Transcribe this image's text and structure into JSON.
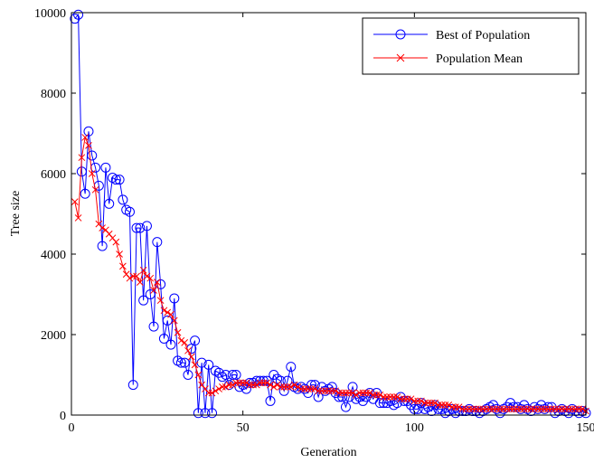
{
  "chart_data": {
    "type": "line",
    "title": "",
    "xlabel": "Generation",
    "ylabel": "Tree size",
    "xlim": [
      0,
      150
    ],
    "ylim": [
      0,
      10000
    ],
    "xticks": [
      0,
      50,
      100,
      150
    ],
    "yticks": [
      0,
      2000,
      4000,
      6000,
      8000,
      10000
    ],
    "grid": false,
    "legend_position": "top-right",
    "series": [
      {
        "name": "Best of Population",
        "color": "#0000ff",
        "marker": "circle",
        "x": [
          1,
          2,
          3,
          4,
          5,
          6,
          7,
          8,
          9,
          10,
          11,
          12,
          13,
          14,
          15,
          16,
          17,
          18,
          19,
          20,
          21,
          22,
          23,
          24,
          25,
          26,
          27,
          28,
          29,
          30,
          31,
          32,
          33,
          34,
          35,
          36,
          37,
          38,
          39,
          40,
          41,
          42,
          43,
          44,
          45,
          46,
          47,
          48,
          49,
          50,
          51,
          52,
          53,
          54,
          55,
          56,
          57,
          58,
          59,
          60,
          61,
          62,
          63,
          64,
          65,
          66,
          67,
          68,
          69,
          70,
          71,
          72,
          73,
          74,
          75,
          76,
          77,
          78,
          79,
          80,
          81,
          82,
          83,
          84,
          85,
          86,
          87,
          88,
          89,
          90,
          91,
          92,
          93,
          94,
          95,
          96,
          97,
          98,
          99,
          100,
          101,
          102,
          103,
          104,
          105,
          106,
          107,
          108,
          109,
          110,
          111,
          112,
          113,
          114,
          115,
          116,
          117,
          118,
          119,
          120,
          121,
          122,
          123,
          124,
          125,
          126,
          127,
          128,
          129,
          130,
          131,
          132,
          133,
          134,
          135,
          136,
          137,
          138,
          139,
          140,
          141,
          142,
          143,
          144,
          145,
          146,
          147,
          148,
          149,
          150
        ],
        "y": [
          9850,
          9950,
          6050,
          5500,
          7050,
          6450,
          6150,
          5700,
          4200,
          6150,
          5250,
          5900,
          5850,
          5850,
          5350,
          5100,
          5050,
          750,
          4650,
          4650,
          2850,
          4700,
          3000,
          2200,
          4300,
          3250,
          1900,
          2350,
          1750,
          2900,
          1350,
          1300,
          1300,
          1000,
          1650,
          1850,
          50,
          1300,
          50,
          1250,
          50,
          1100,
          1050,
          950,
          1000,
          750,
          1000,
          1000,
          700,
          750,
          650,
          800,
          800,
          850,
          850,
          850,
          850,
          350,
          1000,
          900,
          850,
          600,
          850,
          1200,
          700,
          650,
          700,
          650,
          550,
          750,
          750,
          450,
          700,
          600,
          650,
          700,
          550,
          450,
          450,
          200,
          450,
          700,
          400,
          450,
          350,
          450,
          550,
          400,
          550,
          300,
          300,
          300,
          350,
          250,
          300,
          450,
          350,
          350,
          250,
          150,
          150,
          300,
          150,
          200,
          100,
          250,
          150,
          150,
          50,
          100,
          150,
          50,
          100,
          100,
          100,
          150,
          100,
          100,
          50,
          100,
          150,
          200,
          250,
          150,
          50,
          150,
          200,
          300,
          200,
          200,
          150,
          250,
          150,
          100,
          200,
          150,
          250,
          150,
          200,
          200,
          50,
          100,
          150,
          100,
          50,
          150,
          100,
          50,
          100,
          50
        ]
      },
      {
        "name": "Population Mean",
        "color": "#ff0000",
        "marker": "x",
        "x": [
          1,
          2,
          3,
          4,
          5,
          6,
          7,
          8,
          9,
          10,
          11,
          12,
          13,
          14,
          15,
          16,
          17,
          18,
          19,
          20,
          21,
          22,
          23,
          24,
          25,
          26,
          27,
          28,
          29,
          30,
          31,
          32,
          33,
          34,
          35,
          36,
          37,
          38,
          39,
          40,
          41,
          42,
          43,
          44,
          45,
          46,
          47,
          48,
          49,
          50,
          51,
          52,
          53,
          54,
          55,
          56,
          57,
          58,
          59,
          60,
          61,
          62,
          63,
          64,
          65,
          66,
          67,
          68,
          69,
          70,
          71,
          72,
          73,
          74,
          75,
          76,
          77,
          78,
          79,
          80,
          81,
          82,
          83,
          84,
          85,
          86,
          87,
          88,
          89,
          90,
          91,
          92,
          93,
          94,
          95,
          96,
          97,
          98,
          99,
          100,
          101,
          102,
          103,
          104,
          105,
          106,
          107,
          108,
          109,
          110,
          111,
          112,
          113,
          114,
          115,
          116,
          117,
          118,
          119,
          120,
          121,
          122,
          123,
          124,
          125,
          126,
          127,
          128,
          129,
          130,
          131,
          132,
          133,
          134,
          135,
          136,
          137,
          138,
          139,
          140,
          141,
          142,
          143,
          144,
          145,
          146,
          147,
          148,
          149,
          150
        ],
        "y": [
          5300,
          4900,
          6400,
          6900,
          6700,
          6000,
          5600,
          4750,
          4650,
          4600,
          4500,
          4400,
          4300,
          4000,
          3700,
          3500,
          3400,
          3450,
          3450,
          3300,
          3600,
          3450,
          3400,
          3100,
          3300,
          2850,
          2600,
          2550,
          2500,
          2350,
          2050,
          1850,
          1800,
          1600,
          1450,
          1250,
          1000,
          750,
          650,
          550,
          550,
          600,
          650,
          700,
          700,
          750,
          750,
          800,
          800,
          800,
          800,
          750,
          750,
          750,
          800,
          800,
          800,
          750,
          700,
          750,
          700,
          700,
          700,
          700,
          750,
          700,
          650,
          650,
          650,
          650,
          650,
          600,
          600,
          600,
          600,
          600,
          600,
          550,
          550,
          550,
          550,
          550,
          500,
          550,
          550,
          550,
          550,
          500,
          500,
          500,
          450,
          450,
          450,
          450,
          450,
          400,
          400,
          400,
          400,
          350,
          350,
          350,
          300,
          300,
          300,
          300,
          250,
          250,
          250,
          250,
          200,
          200,
          200,
          150,
          150,
          150,
          150,
          150,
          150,
          150,
          150,
          150,
          150,
          150,
          150,
          150,
          150,
          150,
          150,
          150,
          150,
          150,
          150,
          150,
          150,
          150,
          150,
          150,
          150,
          150,
          150,
          150,
          150,
          150,
          150,
          150,
          150,
          150,
          150,
          100
        ]
      }
    ]
  }
}
